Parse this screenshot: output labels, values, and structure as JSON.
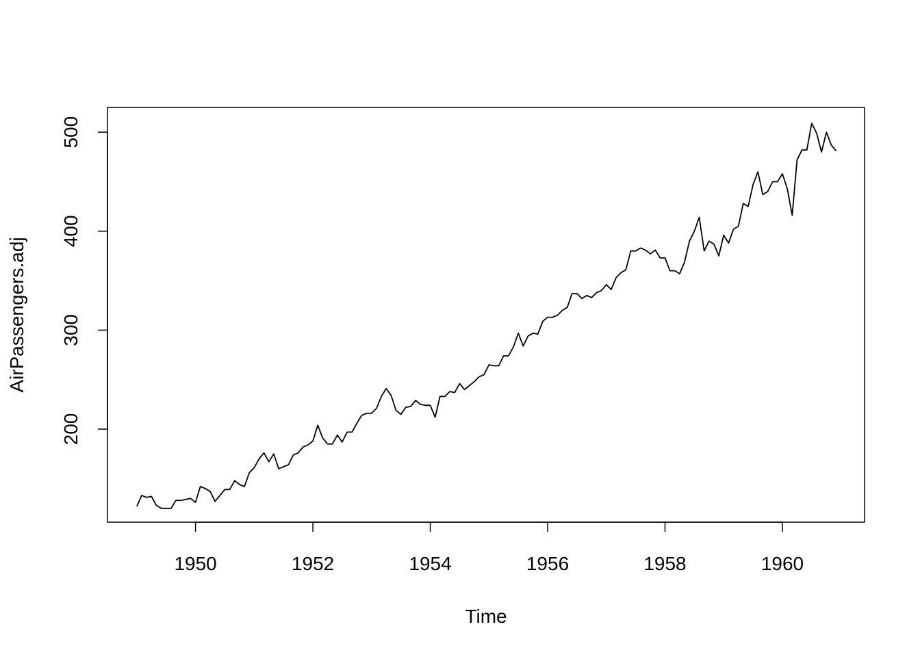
{
  "chart_data": {
    "type": "line",
    "title": "",
    "xlabel": "Time",
    "ylabel": "AirPassengers.adj",
    "xlim": [
      1948.5,
      1961.4
    ],
    "ylim": [
      106,
      525
    ],
    "x_ticks": [
      1950,
      1952,
      1954,
      1956,
      1958,
      1960
    ],
    "y_ticks": [
      200,
      300,
      400,
      500
    ],
    "grid": false,
    "legend": "none",
    "line_color": "#000000",
    "start": 1949.0,
    "frequency": 12,
    "values": [
      122,
      133,
      131,
      132,
      123,
      120,
      120,
      120,
      128,
      128,
      129,
      130,
      126,
      142,
      140,
      137,
      127,
      133,
      139,
      139,
      148,
      144,
      142,
      156,
      161,
      170,
      176,
      167,
      175,
      160,
      162,
      164,
      174,
      176,
      182,
      184,
      188,
      204,
      191,
      185,
      185,
      194,
      187,
      197,
      197,
      206,
      214,
      216,
      216,
      221,
      233,
      241,
      234,
      219,
      215,
      222,
      223,
      229,
      225,
      224,
      224,
      212,
      233,
      233,
      238,
      237,
      246,
      240,
      244,
      248,
      253,
      255,
      265,
      264,
      264,
      274,
      274,
      283,
      297,
      284,
      294,
      297,
      296,
      309,
      313,
      313,
      315,
      320,
      323,
      337,
      337,
      332,
      335,
      333,
      338,
      340,
      346,
      341,
      353,
      358,
      361,
      380,
      380,
      383,
      381,
      377,
      381,
      373,
      373,
      360,
      360,
      357,
      369,
      390,
      400,
      414,
      380,
      390,
      387,
      375,
      396,
      388,
      402,
      405,
      428,
      425,
      447,
      460,
      437,
      440,
      450,
      450,
      458,
      443,
      416,
      472,
      482,
      482,
      509,
      499,
      480,
      500,
      487,
      481
    ]
  }
}
